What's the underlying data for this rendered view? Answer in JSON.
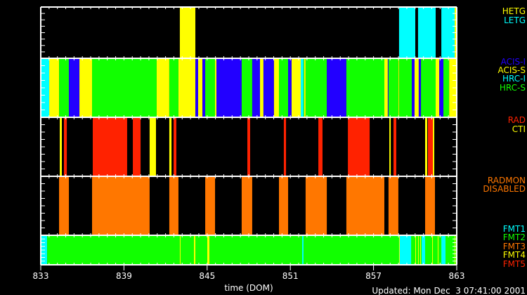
{
  "colors": {
    "cyan": "#00ffff",
    "yellow": "#ffff00",
    "green": "#11ff00",
    "blue": "#2200ff",
    "red": "#ff2200",
    "orange": "#ff7700",
    "axis": "#ffffff",
    "background": "#000000"
  },
  "chart_data": {
    "type": "timeline",
    "xlabel": "time (DOM)",
    "xlim": [
      833,
      863
    ],
    "xticks": [
      "833",
      "839",
      "845",
      "851",
      "857",
      "863"
    ],
    "footer": "Updated: Mon Dec  3 07:41:00 2001",
    "panels": [
      {
        "legend": [
          {
            "label": "HETG",
            "color": "yellow"
          },
          {
            "label": "LETG",
            "color": "cyan"
          }
        ],
        "segments": [
          [
            843.03,
            844.15,
            "yellow"
          ],
          [
            858.84,
            860.01,
            "cyan"
          ],
          [
            860.21,
            861.48,
            "cyan"
          ],
          [
            861.89,
            862.85,
            "cyan"
          ],
          [
            862.85,
            863.0,
            "yellow"
          ]
        ]
      },
      {
        "legend": [
          {
            "label": "ACIS-I",
            "color": "blue"
          },
          {
            "label": "ACIS-S",
            "color": "yellow"
          },
          {
            "label": "HRC-I",
            "color": "cyan"
          },
          {
            "label": "HRC-S",
            "color": "green"
          }
        ],
        "segments": [
          [
            833.0,
            833.61,
            "cyan"
          ],
          [
            833.61,
            834.32,
            "yellow"
          ],
          [
            834.32,
            835.03,
            "green"
          ],
          [
            835.03,
            835.79,
            "blue"
          ],
          [
            835.79,
            836.7,
            "yellow"
          ],
          [
            836.7,
            841.36,
            "green"
          ],
          [
            841.36,
            842.27,
            "yellow"
          ],
          [
            842.27,
            842.93,
            "green"
          ],
          [
            842.93,
            844.15,
            "yellow"
          ],
          [
            844.15,
            844.35,
            "blue"
          ],
          [
            844.35,
            844.66,
            "yellow"
          ],
          [
            844.66,
            844.86,
            "blue"
          ],
          [
            844.86,
            845.57,
            "green"
          ],
          [
            845.57,
            845.67,
            "yellow"
          ],
          [
            845.67,
            847.49,
            "blue"
          ],
          [
            847.49,
            848.25,
            "green"
          ],
          [
            848.25,
            848.81,
            "blue"
          ],
          [
            848.81,
            849.06,
            "yellow"
          ],
          [
            849.06,
            849.82,
            "blue"
          ],
          [
            849.82,
            850.18,
            "yellow"
          ],
          [
            850.18,
            850.84,
            "green"
          ],
          [
            850.84,
            851.09,
            "blue"
          ],
          [
            851.09,
            851.75,
            "yellow"
          ],
          [
            851.75,
            851.95,
            "cyan"
          ],
          [
            851.95,
            852.0,
            "green"
          ],
          [
            852.0,
            852.1,
            "yellow"
          ],
          [
            852.1,
            853.63,
            "green"
          ],
          [
            853.63,
            855.04,
            "blue"
          ],
          [
            855.04,
            857.78,
            "green"
          ],
          [
            857.78,
            858.03,
            "yellow"
          ],
          [
            858.03,
            858.08,
            "blue"
          ],
          [
            858.08,
            858.79,
            "green"
          ],
          [
            858.79,
            858.84,
            "yellow"
          ],
          [
            858.84,
            859.76,
            "green"
          ],
          [
            859.76,
            859.96,
            "blue"
          ],
          [
            859.96,
            860.26,
            "yellow"
          ],
          [
            860.26,
            860.42,
            "blue"
          ],
          [
            860.42,
            861.48,
            "green"
          ],
          [
            861.48,
            861.74,
            "yellow"
          ],
          [
            861.74,
            862.04,
            "blue"
          ],
          [
            862.04,
            862.45,
            "green"
          ],
          [
            862.45,
            863.0,
            "yellow"
          ]
        ]
      },
      {
        "legend": [
          {
            "label": "RAD",
            "color": "red"
          },
          {
            "label": "CTI",
            "color": "yellow"
          }
        ],
        "segments": [
          [
            834.37,
            834.52,
            "yellow"
          ],
          [
            834.67,
            834.88,
            "red"
          ],
          [
            836.75,
            839.23,
            "red"
          ],
          [
            839.64,
            840.2,
            "red"
          ],
          [
            840.85,
            841.31,
            "yellow"
          ],
          [
            842.27,
            842.43,
            "yellow"
          ],
          [
            842.58,
            842.78,
            "red"
          ],
          [
            847.9,
            848.1,
            "red"
          ],
          [
            850.53,
            850.69,
            "red"
          ],
          [
            853.02,
            853.32,
            "red"
          ],
          [
            855.15,
            856.72,
            "red"
          ],
          [
            858.14,
            858.24,
            "yellow"
          ],
          [
            858.44,
            858.64,
            "red"
          ],
          [
            860.72,
            860.87,
            "yellow"
          ],
          [
            860.92,
            861.28,
            "red"
          ],
          [
            861.28,
            861.38,
            "yellow"
          ]
        ]
      },
      {
        "legend": [
          {
            "label": "RADMON",
            "color": "orange"
          },
          {
            "label": "DISABLED",
            "color": "orange"
          }
        ],
        "segments": [
          [
            834.32,
            835.03,
            "orange"
          ],
          [
            836.7,
            840.85,
            "orange"
          ],
          [
            842.27,
            842.93,
            "orange"
          ],
          [
            844.86,
            845.57,
            "orange"
          ],
          [
            847.49,
            848.25,
            "orange"
          ],
          [
            850.18,
            850.84,
            "orange"
          ],
          [
            852.1,
            853.63,
            "orange"
          ],
          [
            855.04,
            857.78,
            "orange"
          ],
          [
            858.08,
            858.79,
            "orange"
          ],
          [
            860.72,
            861.43,
            "orange"
          ]
        ]
      },
      {
        "legend": [
          {
            "label": "FMT1",
            "color": "cyan"
          },
          {
            "label": "FMT2",
            "color": "green"
          },
          {
            "label": "FMT3",
            "color": "orange"
          },
          {
            "label": "FMT4",
            "color": "yellow"
          },
          {
            "label": "FMT5",
            "color": "red"
          }
        ],
        "segments": [
          [
            833.0,
            833.46,
            "cyan"
          ],
          [
            833.46,
            863.0,
            "green"
          ],
          [
            843.03,
            843.08,
            "yellow"
          ],
          [
            844.05,
            844.15,
            "yellow"
          ],
          [
            845.01,
            845.16,
            "yellow"
          ],
          [
            851.85,
            851.95,
            "cyan"
          ],
          [
            858.84,
            858.89,
            "yellow"
          ],
          [
            858.89,
            859.71,
            "cyan"
          ],
          [
            860.01,
            860.06,
            "yellow"
          ],
          [
            860.21,
            860.26,
            "yellow"
          ],
          [
            860.36,
            860.41,
            "yellow"
          ],
          [
            860.47,
            860.72,
            "cyan"
          ],
          [
            861.23,
            861.28,
            "yellow"
          ],
          [
            861.63,
            861.68,
            "yellow"
          ],
          [
            861.89,
            862.19,
            "cyan"
          ],
          [
            862.85,
            862.9,
            "yellow"
          ]
        ]
      }
    ]
  }
}
